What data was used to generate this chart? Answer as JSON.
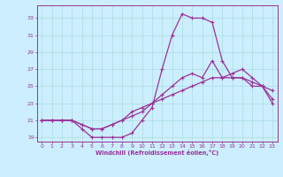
{
  "title": "",
  "xlabel": "Windchill (Refroidissement éolien,°C)",
  "bg_color": "#cceeff",
  "grid_color": "#aadddd",
  "line_color": "#993399",
  "xlim": [
    -0.5,
    23.5
  ],
  "ylim": [
    18.5,
    34.5
  ],
  "xticks": [
    0,
    1,
    2,
    3,
    4,
    5,
    6,
    7,
    8,
    9,
    10,
    11,
    12,
    13,
    14,
    15,
    16,
    17,
    18,
    19,
    20,
    21,
    22,
    23
  ],
  "yticks": [
    19,
    21,
    23,
    25,
    27,
    29,
    31,
    33
  ],
  "hours": [
    0,
    1,
    2,
    3,
    4,
    5,
    6,
    7,
    8,
    9,
    10,
    11,
    12,
    13,
    14,
    15,
    16,
    17,
    18,
    19,
    20,
    21,
    22,
    23
  ],
  "curve1": [
    21,
    21,
    21,
    21,
    20,
    19,
    19,
    19,
    19,
    19.5,
    21,
    22.5,
    27,
    31,
    33.5,
    33,
    33,
    32.5,
    28,
    26,
    26,
    25,
    25,
    23
  ],
  "curve2": [
    21,
    21,
    21,
    21,
    20.5,
    20,
    20,
    20.5,
    21,
    21.5,
    22,
    23,
    24,
    25,
    26,
    26.5,
    26,
    28,
    26,
    26,
    26,
    25.5,
    25,
    24.5
  ],
  "curve3": [
    21,
    21,
    21,
    21,
    20.5,
    20,
    20,
    20.5,
    21,
    22,
    22.5,
    23,
    23.5,
    24,
    24.5,
    25,
    25.5,
    26,
    26,
    26.5,
    27,
    26,
    25,
    23.5
  ]
}
